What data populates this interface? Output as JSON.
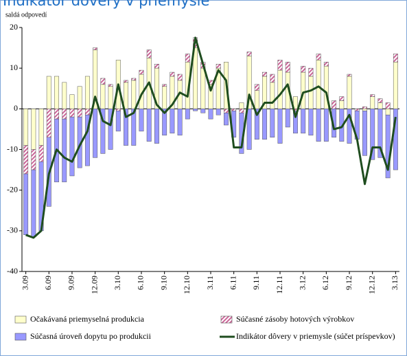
{
  "chart_data": {
    "type": "bar_line",
    "title": "Indikátor dôvery v priemysle",
    "y_label": "saldá odpovedí",
    "categories": [
      "3.09",
      null,
      null,
      "6.09",
      null,
      null,
      "9.09",
      null,
      null,
      "12.09",
      null,
      null,
      "3.10",
      null,
      null,
      "6.10",
      null,
      null,
      "9.10",
      null,
      null,
      "12.10",
      null,
      null,
      "3.11",
      null,
      null,
      "6.11",
      null,
      null,
      "9.11",
      null,
      null,
      "12.11",
      null,
      null,
      "3.12",
      null,
      null,
      "6.12",
      null,
      null,
      "9.12",
      null,
      null,
      "12.12",
      null,
      null,
      "3.13"
    ],
    "ylim": [
      -40,
      20
    ],
    "yticks": [
      -40,
      -30,
      -20,
      -10,
      0,
      10,
      20
    ],
    "series": [
      {
        "name": "Očakávaná priemyselná produkcia",
        "color": "#ffffcc",
        "kind": "bar",
        "values": [
          -9,
          -10,
          -9,
          8,
          8,
          6.5,
          3.5,
          5.5,
          8,
          14.5,
          6,
          5.5,
          12,
          6.5,
          7,
          8.5,
          12.5,
          10,
          5.5,
          8,
          7,
          11.5,
          15,
          10,
          6,
          10,
          11.5,
          0,
          1.5,
          13,
          4.5,
          8,
          6.5,
          9.5,
          9,
          3,
          9,
          8,
          12,
          10.5,
          0,
          2,
          8,
          0,
          -0.5,
          3,
          1.5,
          -1.5,
          11.5
        ]
      },
      {
        "name": "Súčasné zásoby hotových výrobkov",
        "color": "#cc6699",
        "kind": "bar",
        "values": [
          -7,
          -5,
          -4,
          -7,
          -2.5,
          -2.5,
          -2,
          -2,
          -1.5,
          0.5,
          1.5,
          0.5,
          -0.5,
          0.5,
          0.5,
          1,
          2,
          1,
          0.5,
          1,
          1.5,
          2,
          2.5,
          1.5,
          1,
          1,
          -1,
          -0.5,
          -1,
          1,
          1.5,
          1,
          2,
          2.5,
          2.5,
          -0.5,
          1.5,
          2,
          1.5,
          1,
          2,
          1,
          0.5,
          -0.5,
          0.5,
          0.5,
          1,
          1.5,
          2
        ]
      },
      {
        "name": "Súčasná úroveň dopytu po produkcii",
        "color": "#9999ff",
        "kind": "bar",
        "values": [
          -15,
          -16.5,
          -17,
          -17,
          -15.5,
          -15.5,
          -14.5,
          -12.5,
          -12.5,
          -12,
          -11,
          -10,
          -5,
          -9,
          -9,
          -5.5,
          -8,
          -8.5,
          -6.5,
          -6,
          -6.5,
          -2.5,
          -0.5,
          -1,
          -2.5,
          -1.5,
          -3,
          -6.5,
          -10,
          -10,
          -7.5,
          -7.5,
          -7,
          -8.5,
          -4.5,
          -5.5,
          -6,
          -6.5,
          -8,
          -8,
          -7,
          -8,
          -8.5,
          -7,
          -11,
          -12.5,
          -12,
          -15.5,
          -15
        ]
      },
      {
        "name": "Indikátor dôvery v priemysle (súčet príspevkov)",
        "color": "#1f4d1f",
        "kind": "line",
        "values": [
          -31,
          -31.7,
          -30,
          -16,
          -10,
          -12,
          -13,
          -9,
          -5.5,
          3,
          -3,
          -4,
          6,
          -2,
          -1,
          3.5,
          6.5,
          1,
          -1,
          1,
          4,
          3,
          17.5,
          11,
          4.5,
          9.5,
          7,
          -9.5,
          -9.5,
          3.5,
          -1.5,
          1.5,
          1.5,
          3.5,
          6,
          -2,
          4,
          4.5,
          5.5,
          4,
          -5,
          -4.5,
          -1.5,
          -7.5,
          -18.5,
          -9.5,
          -9.5,
          -15,
          -2
        ]
      }
    ]
  }
}
